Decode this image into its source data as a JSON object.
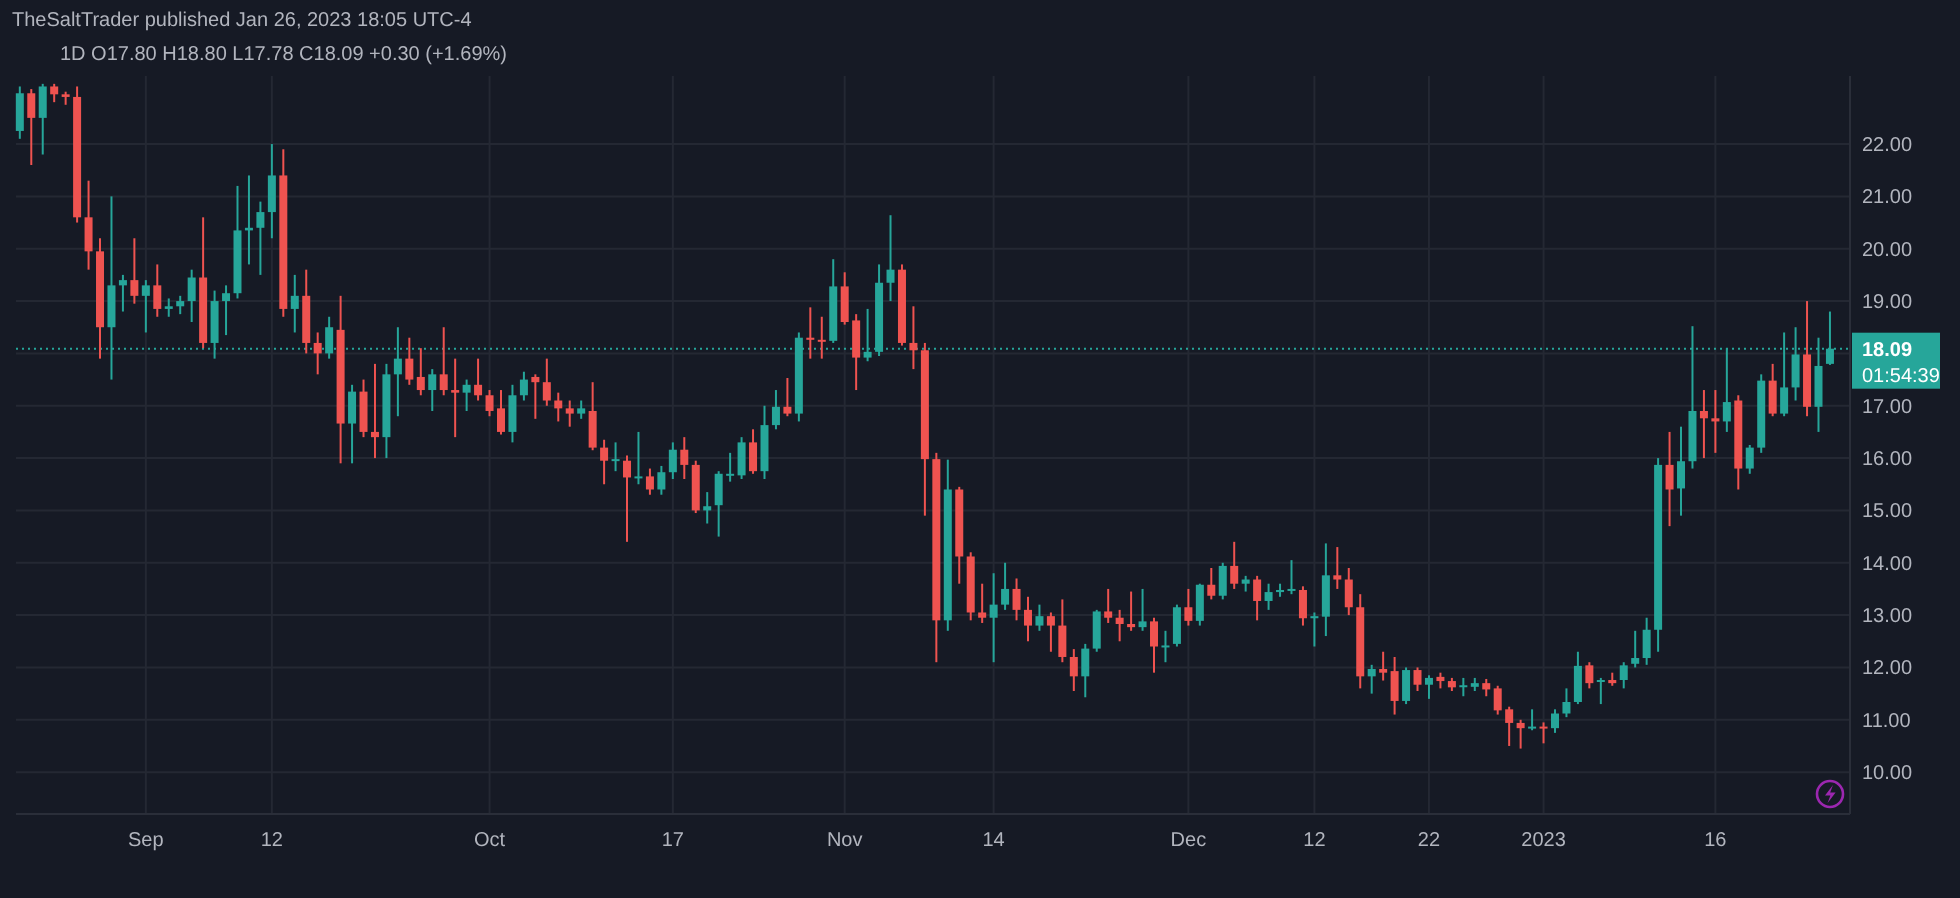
{
  "chart_data": {
    "type": "candlestick",
    "title": "TheSaltTrader published Jan 26, 2023 18:05 UTC-4",
    "subtitle": "1D O17.80 H18.80 L17.78 C18.09 +0.30 (+1.69%)",
    "colors": [
      "#26a69a",
      "#ef5350",
      "#26a69a",
      "#ef5350",
      "#ef5350",
      "#ef5350",
      "#ef5350",
      "#ef5350",
      "#26a69a",
      "#26a69a",
      "#ef5350",
      "#26a69a",
      "#ef5350",
      "#26a69a",
      "#26a69a",
      "#26a69a",
      "#ef5350",
      "#26a69a",
      "#26a69a",
      "#26a69a",
      "#26a69a",
      "#26a69a",
      "#26a69a",
      "#ef5350",
      "#26a69a",
      "#ef5350",
      "#ef5350",
      "#26a69a",
      "#ef5350",
      "#26a69a",
      "#ef5350",
      "#ef5350",
      "#26a69a",
      "#26a69a",
      "#ef5350",
      "#ef5350",
      "#26a69a",
      "#ef5350",
      "#ef5350",
      "#26a69a",
      "#ef5350",
      "#ef5350",
      "#ef5350",
      "#26a69a",
      "#26a69a",
      "#ef5350",
      "#ef5350",
      "#ef5350",
      "#ef5350",
      "#26a69a",
      "#ef5350",
      "#ef5350",
      "#26a69a",
      "#ef5350",
      "#26a69a",
      "#ef5350",
      "#26a69a",
      "#26a69a",
      "#ef5350",
      "#ef5350",
      "#26a69a",
      "#26a69a",
      "#26a69a",
      "#26a69a",
      "#ef5350",
      "#26a69a",
      "#26a69a",
      "#ef5350",
      "#26a69a",
      "#ef5350",
      "#ef5350",
      "#26a69a",
      "#ef5350",
      "#ef5350",
      "#26a69a",
      "#26a69a",
      "#26a69a",
      "#ef5350",
      "#ef5350",
      "#ef5350",
      "#ef5350",
      "#26a69a",
      "#ef5350",
      "#ef5350",
      "#ef5350",
      "#26a69a",
      "#26a69a",
      "#ef5350",
      "#ef5350",
      "#26a69a",
      "#ef5350",
      "#ef5350",
      "#ef5350",
      "#26a69a",
      "#26a69a",
      "#ef5350",
      "#ef5350",
      "#ef5350",
      "#26a69a",
      "#ef5350",
      "#26a69a",
      "#26a69a",
      "#ef5350",
      "#26a69a",
      "#ef5350",
      "#26a69a",
      "#ef5350",
      "#26a69a",
      "#ef5350",
      "#26a69a",
      "#26a69a",
      "#26a69a",
      "#ef5350",
      "#26a69a",
      "#26a69a",
      "#ef5350",
      "#ef5350",
      "#ef5350",
      "#26a69a",
      "#ef5350",
      "#ef5350",
      "#26a69a",
      "#ef5350",
      "#26a69a",
      "#ef5350",
      "#ef5350",
      "#26a69a",
      "#26a69a",
      "#ef5350",
      "#ef5350",
      "#ef5350",
      "#ef5350",
      "#26a69a",
      "#ef5350",
      "#26a69a",
      "#26a69a",
      "#26a69a",
      "#ef5350",
      "#26a69a",
      "#ef5350",
      "#26a69a",
      "#26a69a",
      "#26a69a",
      "#26a69a",
      "#ef5350",
      "#26a69a",
      "#26a69a",
      "#ef5350",
      "#ef5350",
      "#26a69a",
      "#ef5350",
      "#26a69a",
      "#26a69a",
      "#ef5350",
      "#26a69a",
      "#26a69a",
      "#ef5350",
      "#26a69a",
      "#26a69a"
    ],
    "x": [
      "2022-08-21",
      "2022-08-22",
      "2022-08-23",
      "2022-08-24",
      "2022-08-25",
      "2022-08-26",
      "2022-08-27",
      "2022-08-28",
      "2022-08-29",
      "2022-08-30",
      "2022-08-31",
      "2022-09-01",
      "2022-09-02",
      "2022-09-03",
      "2022-09-04",
      "2022-09-05",
      "2022-09-06",
      "2022-09-07",
      "2022-09-08",
      "2022-09-09",
      "2022-09-10",
      "2022-09-11",
      "2022-09-12",
      "2022-09-13",
      "2022-09-14",
      "2022-09-15",
      "2022-09-16",
      "2022-09-17",
      "2022-09-18",
      "2022-09-19",
      "2022-09-20",
      "2022-09-21",
      "2022-09-22",
      "2022-09-23",
      "2022-09-24",
      "2022-09-25",
      "2022-09-26",
      "2022-09-27",
      "2022-09-28",
      "2022-09-29",
      "2022-09-30",
      "2022-10-01",
      "2022-10-02",
      "2022-10-03",
      "2022-10-04",
      "2022-10-05",
      "2022-10-06",
      "2022-10-07",
      "2022-10-08",
      "2022-10-09",
      "2022-10-10",
      "2022-10-11",
      "2022-10-12",
      "2022-10-13",
      "2022-10-14",
      "2022-10-15",
      "2022-10-16",
      "2022-10-17",
      "2022-10-18",
      "2022-10-19",
      "2022-10-20",
      "2022-10-21",
      "2022-10-22",
      "2022-10-23",
      "2022-10-24",
      "2022-10-25",
      "2022-10-26",
      "2022-10-27",
      "2022-10-28",
      "2022-10-29",
      "2022-10-30",
      "2022-10-31",
      "2022-11-01",
      "2022-11-02",
      "2022-11-03",
      "2022-11-04",
      "2022-11-05",
      "2022-11-06",
      "2022-11-07",
      "2022-11-08",
      "2022-11-09",
      "2022-11-10",
      "2022-11-11",
      "2022-11-12",
      "2022-11-13",
      "2022-11-14",
      "2022-11-15",
      "2022-11-16",
      "2022-11-17",
      "2022-11-18",
      "2022-11-19",
      "2022-11-20",
      "2022-11-21",
      "2022-11-22",
      "2022-11-23",
      "2022-11-24",
      "2022-11-25",
      "2022-11-26",
      "2022-11-27",
      "2022-11-28",
      "2022-11-29",
      "2022-11-30",
      "2022-12-01",
      "2022-12-02",
      "2022-12-03",
      "2022-12-04",
      "2022-12-05",
      "2022-12-06",
      "2022-12-07",
      "2022-12-08",
      "2022-12-09",
      "2022-12-10",
      "2022-12-11",
      "2022-12-12",
      "2022-12-13",
      "2022-12-14",
      "2022-12-15",
      "2022-12-16",
      "2022-12-17",
      "2022-12-18",
      "2022-12-19",
      "2022-12-20",
      "2022-12-21",
      "2022-12-22",
      "2022-12-23",
      "2022-12-24",
      "2022-12-25",
      "2022-12-26",
      "2022-12-27",
      "2022-12-28",
      "2022-12-29",
      "2022-12-30",
      "2022-12-31",
      "2023-01-01",
      "2023-01-02",
      "2023-01-03",
      "2023-01-04",
      "2023-01-05",
      "2023-01-06",
      "2023-01-07",
      "2023-01-08",
      "2023-01-09",
      "2023-01-10",
      "2023-01-11",
      "2023-01-12",
      "2023-01-13",
      "2023-01-14",
      "2023-01-15",
      "2023-01-16",
      "2023-01-17",
      "2023-01-18",
      "2023-01-19",
      "2023-01-20",
      "2023-01-21",
      "2023-01-22",
      "2023-01-23",
      "2023-01-24",
      "2023-01-25",
      "2023-01-26"
    ],
    "ohlc": [
      [
        22.25,
        23.1,
        22.1,
        22.97
      ],
      [
        22.97,
        23.05,
        21.6,
        22.5
      ],
      [
        22.5,
        23.15,
        21.8,
        23.1
      ],
      [
        23.1,
        23.15,
        22.8,
        22.95
      ],
      [
        22.95,
        23.0,
        22.75,
        22.9
      ],
      [
        22.9,
        23.1,
        20.5,
        20.6
      ],
      [
        20.6,
        21.3,
        19.6,
        19.95
      ],
      [
        19.95,
        20.2,
        17.9,
        18.5
      ],
      [
        18.5,
        21.0,
        17.5,
        19.3
      ],
      [
        19.3,
        19.5,
        18.8,
        19.4
      ],
      [
        19.4,
        20.2,
        18.95,
        19.1
      ],
      [
        19.1,
        19.4,
        18.4,
        19.3
      ],
      [
        19.3,
        19.7,
        18.7,
        18.85
      ],
      [
        18.85,
        19.05,
        18.7,
        18.9
      ],
      [
        18.9,
        19.1,
        18.75,
        19.0
      ],
      [
        19.0,
        19.6,
        18.6,
        19.45
      ],
      [
        19.45,
        20.6,
        18.1,
        18.2
      ],
      [
        18.2,
        19.2,
        17.9,
        19.0
      ],
      [
        19.0,
        19.3,
        18.35,
        19.15
      ],
      [
        19.15,
        21.2,
        19.05,
        20.35
      ],
      [
        20.35,
        21.4,
        19.7,
        20.4
      ],
      [
        20.4,
        20.9,
        19.5,
        20.7
      ],
      [
        20.7,
        22.0,
        20.2,
        21.4
      ],
      [
        21.4,
        21.9,
        18.7,
        18.85
      ],
      [
        18.85,
        19.5,
        18.4,
        19.1
      ],
      [
        19.1,
        19.6,
        18.0,
        18.2
      ],
      [
        18.2,
        18.4,
        17.6,
        18.0
      ],
      [
        18.0,
        18.7,
        17.9,
        18.5
      ],
      [
        18.45,
        19.1,
        15.9,
        16.66
      ],
      [
        16.66,
        17.4,
        15.9,
        17.27
      ],
      [
        17.27,
        17.5,
        16.4,
        16.5
      ],
      [
        16.5,
        17.8,
        16.0,
        16.4
      ],
      [
        16.4,
        17.8,
        16.0,
        17.6
      ],
      [
        17.6,
        18.5,
        16.8,
        17.9
      ],
      [
        17.9,
        18.3,
        17.4,
        17.5
      ],
      [
        17.55,
        18.1,
        17.2,
        17.3
      ],
      [
        17.3,
        17.7,
        16.9,
        17.6
      ],
      [
        17.6,
        18.5,
        17.2,
        17.3
      ],
      [
        17.3,
        17.9,
        16.4,
        17.25
      ],
      [
        17.25,
        17.5,
        16.9,
        17.4
      ],
      [
        17.4,
        17.9,
        17.1,
        17.2
      ],
      [
        17.2,
        17.3,
        16.8,
        16.9
      ],
      [
        16.95,
        17.3,
        16.45,
        16.5
      ],
      [
        16.5,
        17.4,
        16.3,
        17.2
      ],
      [
        17.2,
        17.65,
        17.1,
        17.5
      ],
      [
        17.55,
        17.6,
        16.75,
        17.45
      ],
      [
        17.45,
        17.9,
        17.0,
        17.1
      ],
      [
        17.1,
        17.25,
        16.7,
        16.95
      ],
      [
        16.95,
        17.1,
        16.6,
        16.85
      ],
      [
        16.85,
        17.1,
        16.75,
        16.95
      ],
      [
        16.9,
        17.45,
        16.15,
        16.2
      ],
      [
        16.2,
        16.35,
        15.5,
        15.95
      ],
      [
        15.95,
        16.3,
        15.75,
        15.98
      ],
      [
        15.95,
        16.05,
        14.4,
        15.63
      ],
      [
        15.63,
        16.5,
        15.5,
        15.65
      ],
      [
        15.65,
        15.8,
        15.3,
        15.4
      ],
      [
        15.4,
        15.85,
        15.3,
        15.73
      ],
      [
        15.73,
        16.3,
        15.6,
        16.16
      ],
      [
        16.16,
        16.4,
        15.6,
        15.87
      ],
      [
        15.87,
        15.95,
        14.95,
        15.0
      ],
      [
        15.0,
        15.35,
        14.75,
        15.08
      ],
      [
        15.1,
        15.75,
        14.5,
        15.7
      ],
      [
        15.7,
        16.1,
        15.55,
        15.7
      ],
      [
        15.67,
        16.4,
        15.6,
        16.3
      ],
      [
        16.3,
        16.55,
        15.7,
        15.75
      ],
      [
        15.75,
        17.0,
        15.6,
        16.63
      ],
      [
        16.63,
        17.3,
        16.55,
        16.98
      ],
      [
        16.98,
        17.53,
        16.8,
        16.85
      ],
      [
        16.85,
        18.4,
        16.7,
        18.3
      ],
      [
        18.3,
        18.88,
        17.9,
        18.26
      ],
      [
        18.26,
        18.7,
        17.9,
        18.25
      ],
      [
        18.24,
        19.8,
        18.2,
        19.28
      ],
      [
        19.28,
        19.55,
        18.55,
        18.6
      ],
      [
        18.63,
        18.75,
        17.3,
        17.92
      ],
      [
        17.92,
        18.85,
        17.85,
        18.03
      ],
      [
        18.03,
        19.7,
        17.95,
        19.35
      ],
      [
        19.35,
        20.64,
        19.0,
        19.6
      ],
      [
        19.6,
        19.7,
        18.15,
        18.2
      ],
      [
        18.2,
        18.9,
        17.7,
        18.06
      ],
      [
        18.06,
        18.2,
        14.9,
        15.98
      ],
      [
        15.98,
        16.1,
        12.1,
        12.9
      ],
      [
        12.9,
        15.97,
        12.7,
        15.4
      ],
      [
        15.4,
        15.45,
        13.6,
        14.12
      ],
      [
        14.12,
        14.2,
        12.9,
        13.05
      ],
      [
        13.05,
        13.6,
        12.85,
        12.95
      ],
      [
        12.95,
        13.8,
        12.1,
        13.2
      ],
      [
        13.2,
        14.0,
        13.1,
        13.5
      ],
      [
        13.5,
        13.7,
        12.9,
        13.1
      ],
      [
        13.1,
        13.35,
        12.5,
        12.8
      ],
      [
        12.8,
        13.2,
        12.7,
        12.98
      ],
      [
        12.98,
        13.05,
        12.3,
        12.8
      ],
      [
        12.8,
        13.3,
        12.1,
        12.2
      ],
      [
        12.2,
        12.35,
        11.55,
        11.83
      ],
      [
        11.83,
        12.45,
        11.43,
        12.36
      ],
      [
        12.36,
        13.1,
        12.3,
        13.07
      ],
      [
        13.07,
        13.5,
        12.85,
        12.95
      ],
      [
        12.95,
        13.1,
        12.5,
        12.83
      ],
      [
        12.83,
        13.45,
        12.7,
        12.77
      ],
      [
        12.77,
        13.5,
        12.7,
        12.88
      ],
      [
        12.88,
        12.95,
        11.9,
        12.4
      ],
      [
        12.4,
        12.7,
        12.1,
        12.42
      ],
      [
        12.45,
        13.2,
        12.4,
        13.15
      ],
      [
        13.15,
        13.5,
        12.8,
        12.89
      ],
      [
        12.89,
        13.6,
        12.8,
        13.58
      ],
      [
        13.58,
        13.9,
        13.3,
        13.37
      ],
      [
        13.37,
        14.0,
        13.3,
        13.94
      ],
      [
        13.94,
        14.4,
        13.5,
        13.6
      ],
      [
        13.6,
        13.75,
        13.45,
        13.68
      ],
      [
        13.68,
        13.75,
        12.9,
        13.27
      ],
      [
        13.27,
        13.6,
        13.1,
        13.44
      ],
      [
        13.44,
        13.6,
        13.35,
        13.48
      ],
      [
        13.48,
        14.05,
        13.4,
        13.5
      ],
      [
        13.48,
        13.55,
        12.8,
        12.94
      ],
      [
        12.94,
        13.05,
        12.4,
        12.98
      ],
      [
        12.97,
        14.37,
        12.6,
        13.76
      ],
      [
        13.76,
        14.3,
        13.5,
        13.68
      ],
      [
        13.68,
        13.9,
        13.0,
        13.15
      ],
      [
        13.15,
        13.4,
        11.6,
        11.83
      ],
      [
        11.83,
        12.05,
        11.5,
        11.97
      ],
      [
        11.97,
        12.3,
        11.75,
        11.9
      ],
      [
        11.93,
        12.2,
        11.1,
        11.36
      ],
      [
        11.36,
        12.0,
        11.3,
        11.95
      ],
      [
        11.95,
        12.0,
        11.55,
        11.67
      ],
      [
        11.67,
        11.85,
        11.4,
        11.8
      ],
      [
        11.82,
        11.9,
        11.6,
        11.74
      ],
      [
        11.74,
        11.8,
        11.55,
        11.62
      ],
      [
        11.64,
        11.8,
        11.45,
        11.66
      ],
      [
        11.63,
        11.8,
        11.55,
        11.7
      ],
      [
        11.7,
        11.78,
        11.45,
        11.58
      ],
      [
        11.6,
        11.65,
        11.1,
        11.18
      ],
      [
        11.2,
        11.25,
        10.5,
        10.94
      ],
      [
        10.94,
        11.0,
        10.45,
        10.84
      ],
      [
        10.84,
        11.2,
        10.8,
        10.87
      ],
      [
        10.87,
        10.95,
        10.55,
        10.84
      ],
      [
        10.84,
        11.2,
        10.75,
        11.12
      ],
      [
        11.12,
        11.6,
        11.05,
        11.34
      ],
      [
        11.34,
        12.3,
        11.3,
        12.03
      ],
      [
        12.04,
        12.1,
        11.6,
        11.7
      ],
      [
        11.74,
        11.8,
        11.3,
        11.76
      ],
      [
        11.76,
        11.9,
        11.65,
        11.7
      ],
      [
        11.76,
        12.1,
        11.6,
        12.04
      ],
      [
        12.07,
        12.7,
        12.0,
        12.18
      ],
      [
        12.18,
        12.95,
        12.05,
        12.72
      ],
      [
        12.72,
        16.0,
        12.3,
        15.87
      ],
      [
        15.87,
        16.5,
        14.7,
        15.4
      ],
      [
        15.42,
        16.6,
        14.9,
        15.94
      ],
      [
        15.94,
        18.52,
        15.8,
        16.9
      ],
      [
        16.9,
        17.3,
        16.0,
        16.76
      ],
      [
        16.76,
        17.3,
        16.1,
        16.7
      ],
      [
        16.7,
        18.1,
        16.5,
        17.07
      ],
      [
        17.1,
        17.2,
        15.4,
        15.8
      ],
      [
        15.8,
        16.25,
        15.7,
        16.2
      ],
      [
        16.2,
        17.6,
        16.1,
        17.48
      ],
      [
        17.48,
        17.8,
        16.8,
        16.85
      ],
      [
        16.85,
        18.4,
        16.8,
        17.35
      ],
      [
        17.35,
        18.5,
        17.1,
        17.98
      ],
      [
        17.98,
        19.0,
        16.8,
        16.98
      ],
      [
        16.98,
        18.3,
        16.5,
        17.76
      ],
      [
        17.8,
        18.8,
        17.78,
        18.09
      ]
    ],
    "xlim": [
      "2022-08-20T16:00",
      "2023-01-27T18:00"
    ],
    "xticks": [
      {
        "value": "2022-09-01",
        "label": "Sep"
      },
      {
        "value": "2022-09-12",
        "label": "12"
      },
      {
        "value": "2022-10-01",
        "label": "Oct"
      },
      {
        "value": "2022-10-17",
        "label": "17"
      },
      {
        "value": "2022-11-01",
        "label": "Nov"
      },
      {
        "value": "2022-11-14",
        "label": "14"
      },
      {
        "value": "2022-12-01",
        "label": "Dec"
      },
      {
        "value": "2022-12-12",
        "label": "12"
      },
      {
        "value": "2022-12-22",
        "label": "22"
      },
      {
        "value": "2023-01-01",
        "label": "2023"
      },
      {
        "value": "2023-01-16",
        "label": "16"
      }
    ],
    "ylim": [
      9.2,
      23.3
    ],
    "yticks": [
      {
        "value": 10,
        "label": "10.00"
      },
      {
        "value": 11,
        "label": "11.00"
      },
      {
        "value": 12,
        "label": "12.00"
      },
      {
        "value": 13,
        "label": "13.00"
      },
      {
        "value": 14,
        "label": "14.00"
      },
      {
        "value": 15,
        "label": "15.00"
      },
      {
        "value": 16,
        "label": "16.00"
      },
      {
        "value": 17,
        "label": "17.00"
      },
      {
        "value": 18,
        "label": null
      },
      {
        "value": 19,
        "label": "19.00"
      },
      {
        "value": 20,
        "label": "20.00"
      },
      {
        "value": 21,
        "label": "21.00"
      },
      {
        "value": 22,
        "label": "22.00"
      }
    ],
    "ref_lines": [
      {
        "axis": "y",
        "value": 18.09,
        "label": "18.09",
        "color": "#26a69a",
        "line_style": "dotted"
      }
    ],
    "annotations": [
      "01:54:39"
    ],
    "grid": true
  }
}
